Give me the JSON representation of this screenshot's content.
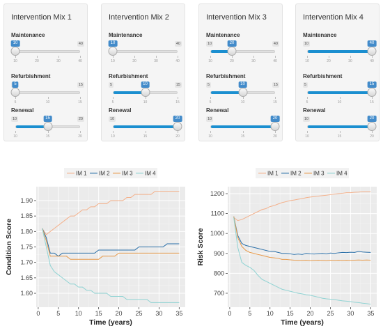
{
  "panels": [
    {
      "title": "Intervention Mix 1",
      "sliders": [
        {
          "label": "Maintenance",
          "min": 10,
          "max": 40,
          "value": 10,
          "ticks": [
            "10",
            "20",
            "30",
            "40"
          ]
        },
        {
          "label": "Refurbishment",
          "min": 5,
          "max": 15,
          "value": 5,
          "ticks": [
            "5",
            "10",
            "15"
          ]
        },
        {
          "label": "Renewal",
          "min": 10,
          "max": 20,
          "value": 15,
          "ticks": [
            "10",
            "15",
            "20"
          ]
        }
      ]
    },
    {
      "title": "Intervention Mix 2",
      "sliders": [
        {
          "label": "Maintenance",
          "min": 10,
          "max": 40,
          "value": 10,
          "ticks": [
            "10",
            "20",
            "30",
            "40"
          ]
        },
        {
          "label": "Refurbishment",
          "min": 5,
          "max": 15,
          "value": 10,
          "ticks": [
            "5",
            "10",
            "15"
          ]
        },
        {
          "label": "Renewal",
          "min": 10,
          "max": 20,
          "value": 20,
          "ticks": [
            "10",
            "15",
            "20"
          ]
        }
      ]
    },
    {
      "title": "Intervention Mix 3",
      "sliders": [
        {
          "label": "Maintenance",
          "min": 10,
          "max": 40,
          "value": 20,
          "ticks": [
            "10",
            "20",
            "30",
            "40"
          ]
        },
        {
          "label": "Refurbishment",
          "min": 5,
          "max": 15,
          "value": 10,
          "ticks": [
            "5",
            "10",
            "15"
          ]
        },
        {
          "label": "Renewal",
          "min": 10,
          "max": 20,
          "value": 20,
          "ticks": [
            "10",
            "15",
            "20"
          ]
        }
      ]
    },
    {
      "title": "Intervention Mix 4",
      "sliders": [
        {
          "label": "Maintenance",
          "min": 10,
          "max": 40,
          "value": 40,
          "ticks": [
            "10",
            "20",
            "30",
            "40"
          ]
        },
        {
          "label": "Refurbishment",
          "min": 5,
          "max": 15,
          "value": 15,
          "ticks": [
            "5",
            "10",
            "15"
          ]
        },
        {
          "label": "Renewal",
          "min": 10,
          "max": 20,
          "value": 20,
          "ticks": [
            "10",
            "15",
            "20"
          ]
        }
      ]
    }
  ],
  "colors": {
    "accent": "#1b8fd0",
    "im1": "#f4b08a",
    "im2": "#2a6fa8",
    "im3": "#e89a4a",
    "im4": "#8fd3d3",
    "plot_bg": "#ebebeb"
  },
  "chart_data": [
    {
      "type": "line",
      "xlabel": "Time (years)",
      "ylabel": "Condition Score",
      "xlim": [
        -0.5,
        36.5
      ],
      "ylim": [
        1.555,
        1.945
      ],
      "grid": true,
      "legend": "top",
      "xticks": [
        0,
        5,
        10,
        15,
        20,
        25,
        30,
        35
      ],
      "yticks": [
        1.6,
        1.65,
        1.7,
        1.75,
        1.8,
        1.85,
        1.9
      ],
      "ytick_labels": [
        "1.60",
        "1.65",
        "1.70",
        "1.75",
        "1.80",
        "1.85",
        "1.90"
      ],
      "xtick_labels": [
        "0",
        "5",
        "10",
        "15",
        "20",
        "25",
        "30",
        "35"
      ],
      "x": [
        1,
        2,
        3,
        4,
        5,
        6,
        7,
        8,
        9,
        10,
        11,
        12,
        13,
        14,
        15,
        16,
        17,
        18,
        19,
        20,
        21,
        22,
        23,
        24,
        25,
        26,
        27,
        28,
        29,
        30,
        31,
        32,
        33,
        34,
        35
      ],
      "series": [
        {
          "name": "IM 1",
          "color": "#f4b08a",
          "values": [
            1.81,
            1.79,
            1.8,
            1.81,
            1.82,
            1.83,
            1.84,
            1.85,
            1.85,
            1.86,
            1.87,
            1.87,
            1.88,
            1.88,
            1.89,
            1.89,
            1.89,
            1.9,
            1.9,
            1.9,
            1.9,
            1.91,
            1.91,
            1.92,
            1.92,
            1.92,
            1.92,
            1.92,
            1.93,
            1.93,
            1.93,
            1.93,
            1.93,
            1.93,
            1.93
          ]
        },
        {
          "name": "IM 2",
          "color": "#2a6fa8",
          "values": [
            1.81,
            1.78,
            1.73,
            1.73,
            1.72,
            1.73,
            1.73,
            1.73,
            1.73,
            1.73,
            1.73,
            1.73,
            1.73,
            1.73,
            1.74,
            1.74,
            1.74,
            1.74,
            1.74,
            1.74,
            1.74,
            1.74,
            1.74,
            1.74,
            1.75,
            1.75,
            1.75,
            1.75,
            1.75,
            1.75,
            1.75,
            1.76,
            1.76,
            1.76,
            1.76
          ]
        },
        {
          "name": "IM 3",
          "color": "#e89a4a",
          "values": [
            1.81,
            1.77,
            1.72,
            1.72,
            1.72,
            1.72,
            1.72,
            1.71,
            1.71,
            1.71,
            1.71,
            1.71,
            1.71,
            1.71,
            1.71,
            1.72,
            1.72,
            1.72,
            1.72,
            1.73,
            1.73,
            1.73,
            1.73,
            1.73,
            1.73,
            1.73,
            1.73,
            1.73,
            1.73,
            1.73,
            1.73,
            1.73,
            1.73,
            1.73,
            1.73
          ]
        },
        {
          "name": "IM 4",
          "color": "#8fd3d3",
          "values": [
            1.81,
            1.75,
            1.69,
            1.67,
            1.66,
            1.65,
            1.64,
            1.63,
            1.63,
            1.62,
            1.62,
            1.61,
            1.61,
            1.6,
            1.6,
            1.6,
            1.6,
            1.59,
            1.59,
            1.59,
            1.59,
            1.58,
            1.58,
            1.58,
            1.58,
            1.58,
            1.58,
            1.57,
            1.57,
            1.57,
            1.57,
            1.57,
            1.57,
            1.57,
            1.57
          ]
        }
      ]
    },
    {
      "type": "line",
      "xlabel": "Time (years)",
      "ylabel": "Risk Score",
      "xlim": [
        -0.5,
        36.5
      ],
      "ylim": [
        630,
        1235
      ],
      "grid": true,
      "legend": "top",
      "xticks": [
        0,
        5,
        10,
        15,
        20,
        25,
        30,
        35
      ],
      "yticks": [
        700,
        800,
        900,
        1000,
        1100,
        1200
      ],
      "ytick_labels": [
        "700",
        "800",
        "900",
        "1000",
        "1100",
        "1200"
      ],
      "xtick_labels": [
        "0",
        "5",
        "10",
        "15",
        "20",
        "25",
        "30",
        "35"
      ],
      "x": [
        1,
        2,
        3,
        4,
        5,
        6,
        7,
        8,
        9,
        10,
        11,
        12,
        13,
        14,
        15,
        16,
        17,
        18,
        19,
        20,
        21,
        22,
        23,
        24,
        25,
        26,
        27,
        28,
        29,
        30,
        31,
        32,
        33,
        34,
        35
      ],
      "series": [
        {
          "name": "IM 1",
          "color": "#f4b08a",
          "values": [
            1080,
            1065,
            1070,
            1080,
            1090,
            1100,
            1110,
            1120,
            1125,
            1135,
            1140,
            1148,
            1155,
            1160,
            1165,
            1168,
            1172,
            1175,
            1180,
            1183,
            1185,
            1188,
            1190,
            1192,
            1195,
            1198,
            1200,
            1202,
            1205,
            1205,
            1207,
            1208,
            1210,
            1210,
            1210
          ]
        },
        {
          "name": "IM 2",
          "color": "#2a6fa8",
          "values": [
            1085,
            990,
            950,
            940,
            935,
            930,
            925,
            920,
            915,
            910,
            910,
            905,
            900,
            900,
            898,
            895,
            897,
            895,
            900,
            898,
            897,
            899,
            900,
            898,
            902,
            900,
            903,
            905,
            904,
            906,
            905,
            910,
            907,
            906,
            905
          ]
        },
        {
          "name": "IM 3",
          "color": "#e89a4a",
          "values": [
            1085,
            980,
            935,
            915,
            905,
            900,
            895,
            890,
            885,
            880,
            878,
            875,
            870,
            870,
            868,
            866,
            865,
            865,
            866,
            864,
            865,
            866,
            865,
            864,
            866,
            865,
            866,
            865,
            866,
            865,
            866,
            867,
            866,
            867,
            866
          ]
        },
        {
          "name": "IM 4",
          "color": "#8fd3d3",
          "values": [
            1080,
            930,
            855,
            840,
            830,
            815,
            790,
            770,
            760,
            750,
            740,
            730,
            720,
            715,
            710,
            705,
            700,
            697,
            692,
            690,
            685,
            680,
            675,
            672,
            670,
            668,
            665,
            662,
            660,
            658,
            655,
            653,
            650,
            648,
            645
          ]
        }
      ]
    }
  ]
}
